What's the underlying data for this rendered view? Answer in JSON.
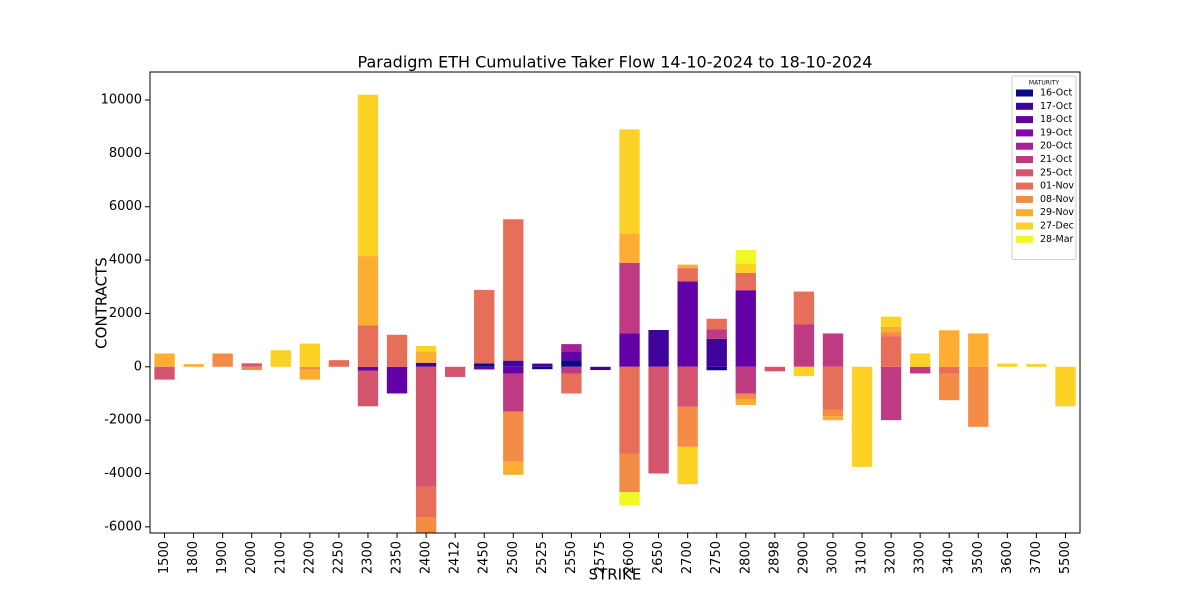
{
  "chart_data": {
    "type": "stacked-bar",
    "title": "Paradigm ETH Cumulative Taker Flow 14-10-2024 to 18-10-2024",
    "x_label": "STRIKE",
    "y_label": "CONTRACTS",
    "legend_title": "MATURITY",
    "legend_position": "upper right",
    "categories": [
      "1500",
      "1800",
      "1900",
      "2000",
      "2100",
      "2200",
      "2250",
      "2300",
      "2350",
      "2400",
      "2412",
      "2450",
      "2500",
      "2525",
      "2550",
      "2575",
      "2600",
      "2650",
      "2700",
      "2750",
      "2800",
      "2898",
      "2900",
      "3000",
      "3100",
      "3200",
      "3300",
      "3400",
      "3500",
      "3600",
      "3700",
      "5500"
    ],
    "ylim": [
      -6230,
      11050
    ],
    "yticks": [
      -6000,
      -4000,
      -2000,
      0,
      2000,
      4000,
      6000,
      8000,
      10000
    ],
    "series": [
      {
        "name": "16-Oct",
        "color": "#0d0887",
        "values": [
          0,
          0,
          0,
          0,
          0,
          0,
          0,
          0,
          0,
          0,
          0,
          130,
          0,
          -90,
          250,
          0,
          0,
          0,
          0,
          -130,
          0,
          0,
          0,
          0,
          0,
          0,
          0,
          0,
          0,
          0,
          0,
          0
        ]
      },
      {
        "name": "17-Oct",
        "color": "#3e049c",
        "values": [
          0,
          0,
          0,
          0,
          0,
          0,
          0,
          0,
          0,
          150,
          0,
          0,
          230,
          120,
          0,
          -120,
          0,
          1380,
          0,
          1050,
          0,
          0,
          0,
          0,
          0,
          0,
          0,
          0,
          0,
          0,
          0,
          0
        ]
      },
      {
        "name": "18-Oct",
        "color": "#6300a7",
        "values": [
          0,
          0,
          0,
          0,
          0,
          0,
          0,
          -150,
          -1000,
          0,
          0,
          -100,
          -250,
          0,
          330,
          0,
          1250,
          0,
          3200,
          0,
          2870,
          0,
          0,
          0,
          0,
          0,
          0,
          0,
          0,
          0,
          0,
          0
        ]
      },
      {
        "name": "19-Oct",
        "color": "#8606a6",
        "values": [
          0,
          0,
          0,
          0,
          0,
          0,
          0,
          0,
          0,
          0,
          0,
          0,
          0,
          0,
          0,
          0,
          0,
          0,
          0,
          0,
          0,
          0,
          0,
          0,
          0,
          0,
          0,
          0,
          0,
          0,
          0,
          0
        ]
      },
      {
        "name": "20-Oct",
        "color": "#a62098",
        "values": [
          0,
          0,
          0,
          0,
          0,
          0,
          0,
          0,
          0,
          0,
          0,
          0,
          0,
          0,
          270,
          0,
          0,
          0,
          0,
          0,
          0,
          0,
          0,
          0,
          0,
          0,
          0,
          0,
          0,
          0,
          0,
          0
        ]
      },
      {
        "name": "21-Oct",
        "color": "#c03a83",
        "values": [
          0,
          0,
          0,
          0,
          0,
          0,
          0,
          0,
          0,
          0,
          0,
          0,
          -1430,
          0,
          -250,
          0,
          2650,
          0,
          0,
          350,
          -1000,
          0,
          1600,
          1250,
          0,
          -2000,
          -250,
          0,
          0,
          0,
          0,
          0
        ]
      },
      {
        "name": "25-Oct",
        "color": "#d5546e",
        "values": [
          -480,
          0,
          0,
          130,
          0,
          0,
          0,
          -1330,
          0,
          -4500,
          -380,
          0,
          0,
          0,
          0,
          0,
          0,
          -4000,
          -1500,
          0,
          0,
          -170,
          0,
          0,
          0,
          0,
          0,
          0,
          0,
          0,
          0,
          0
        ]
      },
      {
        "name": "01-Nov",
        "color": "#e76f5a",
        "values": [
          0,
          0,
          0,
          0,
          0,
          0,
          250,
          1550,
          1200,
          -1130,
          0,
          2750,
          5300,
          0,
          -750,
          0,
          -3250,
          0,
          500,
          400,
          650,
          0,
          1220,
          -1600,
          0,
          1150,
          0,
          -250,
          0,
          0,
          0,
          0
        ]
      },
      {
        "name": "08-Nov",
        "color": "#f58c46",
        "values": [
          0,
          0,
          500,
          -120,
          0,
          -100,
          0,
          0,
          0,
          -700,
          0,
          0,
          -1880,
          0,
          0,
          0,
          -1450,
          0,
          -1500,
          0,
          -230,
          0,
          0,
          -250,
          0,
          150,
          0,
          -1000,
          -2250,
          0,
          0,
          0
        ]
      },
      {
        "name": "29-Nov",
        "color": "#fdad32",
        "values": [
          500,
          100,
          0,
          0,
          0,
          -380,
          0,
          2600,
          0,
          430,
          0,
          0,
          -490,
          0,
          0,
          0,
          1100,
          0,
          130,
          0,
          -200,
          0,
          0,
          -150,
          0,
          200,
          0,
          1370,
          1250,
          0,
          0,
          0
        ]
      },
      {
        "name": "27-Dec",
        "color": "#fcd225",
        "values": [
          0,
          0,
          0,
          0,
          620,
          870,
          0,
          6050,
          0,
          200,
          0,
          0,
          0,
          0,
          0,
          0,
          3900,
          0,
          -1400,
          0,
          350,
          0,
          -350,
          0,
          -3750,
          380,
          500,
          0,
          0,
          120,
          100,
          -1480
        ]
      },
      {
        "name": "28-Mar",
        "color": "#f0f921",
        "values": [
          0,
          0,
          0,
          0,
          0,
          0,
          0,
          0,
          0,
          0,
          0,
          0,
          0,
          0,
          0,
          0,
          -500,
          0,
          0,
          0,
          510,
          0,
          0,
          0,
          0,
          0,
          0,
          0,
          0,
          0,
          0,
          0
        ]
      }
    ]
  }
}
